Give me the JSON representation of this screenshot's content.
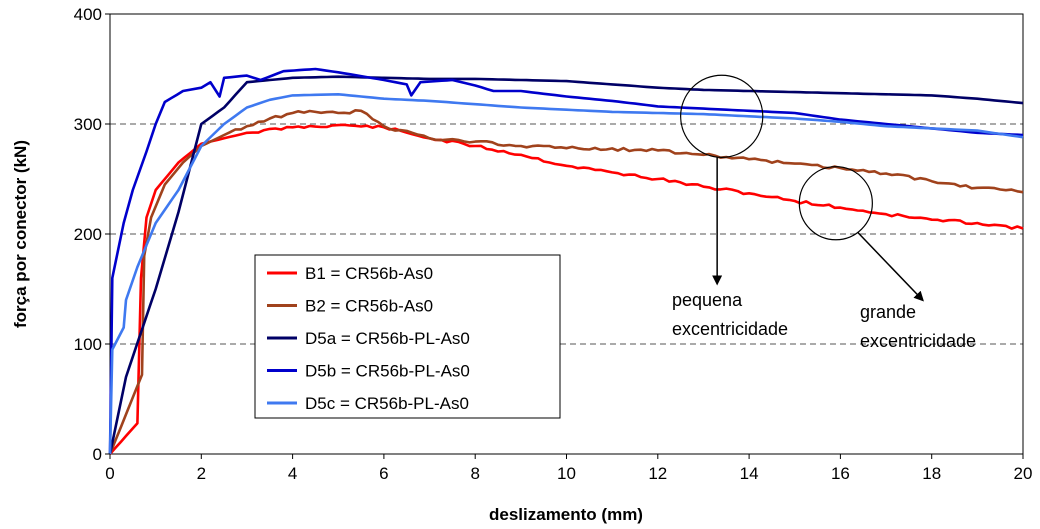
{
  "chart_data": {
    "type": "line",
    "xlabel": "deslizamento (mm)",
    "ylabel": "força por conector (kN)",
    "xlim": [
      0,
      20
    ],
    "ylim": [
      0,
      400
    ],
    "x_ticks": [
      0,
      2,
      4,
      6,
      8,
      10,
      12,
      14,
      16,
      18,
      20
    ],
    "y_ticks": [
      0,
      100,
      200,
      300,
      400
    ],
    "grid": "horizontal dashed",
    "legend_position": "bottom-left",
    "series": [
      {
        "name": "B1 = CR56b-As0",
        "color": "#ff0000",
        "points": [
          [
            0,
            0
          ],
          [
            0.6,
            28
          ],
          [
            0.68,
            160
          ],
          [
            0.8,
            215
          ],
          [
            1,
            240
          ],
          [
            1.5,
            265
          ],
          [
            2,
            282
          ],
          [
            3,
            292
          ],
          [
            4,
            297
          ],
          [
            5,
            299
          ],
          [
            6,
            297
          ],
          [
            7,
            287
          ],
          [
            8,
            280
          ],
          [
            9,
            272
          ],
          [
            10,
            262
          ],
          [
            11,
            256
          ],
          [
            12,
            250
          ],
          [
            13,
            243
          ],
          [
            14,
            237
          ],
          [
            15,
            230
          ],
          [
            16,
            224
          ],
          [
            17,
            218
          ],
          [
            18,
            213
          ],
          [
            19,
            210
          ],
          [
            20,
            205
          ]
        ]
      },
      {
        "name": "B2 = CR56b-As0",
        "color": "#a0421c",
        "points": [
          [
            0,
            0
          ],
          [
            0.7,
            72
          ],
          [
            0.75,
            180
          ],
          [
            0.9,
            215
          ],
          [
            1.2,
            245
          ],
          [
            1.6,
            265
          ],
          [
            2,
            280
          ],
          [
            2.5,
            290
          ],
          [
            3,
            298
          ],
          [
            3.5,
            305
          ],
          [
            4,
            310
          ],
          [
            4.5,
            311
          ],
          [
            5,
            310
          ],
          [
            5.5,
            312
          ],
          [
            6,
            298
          ],
          [
            7,
            287
          ],
          [
            8,
            284
          ],
          [
            9,
            280
          ],
          [
            10,
            278
          ],
          [
            12,
            276
          ],
          [
            13,
            272
          ],
          [
            14,
            268
          ],
          [
            15,
            264
          ],
          [
            16,
            260
          ],
          [
            17,
            255
          ],
          [
            18,
            248
          ],
          [
            19,
            242
          ],
          [
            20,
            238
          ]
        ]
      },
      {
        "name": "D5a = CR56b-PL-As0",
        "color": "#000066",
        "points": [
          [
            0,
            0
          ],
          [
            0.35,
            70
          ],
          [
            1,
            150
          ],
          [
            1.5,
            220
          ],
          [
            2,
            300
          ],
          [
            2.5,
            315
          ],
          [
            3,
            338
          ],
          [
            4,
            342
          ],
          [
            5,
            343
          ],
          [
            6,
            342
          ],
          [
            7,
            341
          ],
          [
            8,
            341
          ],
          [
            9,
            340
          ],
          [
            10,
            339
          ],
          [
            11,
            336
          ],
          [
            12,
            333
          ],
          [
            13,
            331
          ],
          [
            14,
            330
          ],
          [
            15,
            329
          ],
          [
            16,
            328
          ],
          [
            17,
            327
          ],
          [
            18,
            326
          ],
          [
            19,
            323
          ],
          [
            20,
            319
          ]
        ]
      },
      {
        "name": "D5b = CR56b-PL-As0",
        "color": "#0000cc",
        "points": [
          [
            0,
            0
          ],
          [
            0.05,
            160
          ],
          [
            0.3,
            210
          ],
          [
            0.5,
            240
          ],
          [
            0.8,
            275
          ],
          [
            1,
            300
          ],
          [
            1.2,
            320
          ],
          [
            1.6,
            330
          ],
          [
            2,
            333
          ],
          [
            2.2,
            338
          ],
          [
            2.4,
            325
          ],
          [
            2.5,
            342
          ],
          [
            3,
            344
          ],
          [
            3.3,
            340
          ],
          [
            3.8,
            348
          ],
          [
            4.5,
            350
          ],
          [
            5,
            347
          ],
          [
            6,
            340
          ],
          [
            6.5,
            336
          ],
          [
            6.6,
            326
          ],
          [
            6.8,
            338
          ],
          [
            7.5,
            340
          ],
          [
            8,
            335
          ],
          [
            8.4,
            330
          ],
          [
            9,
            330
          ],
          [
            10,
            325
          ],
          [
            11,
            321
          ],
          [
            12,
            316
          ],
          [
            13,
            314
          ],
          [
            14,
            312
          ],
          [
            15,
            310
          ],
          [
            16,
            304
          ],
          [
            17,
            300
          ],
          [
            18,
            296
          ],
          [
            19,
            292
          ],
          [
            20,
            290
          ]
        ]
      },
      {
        "name": "D5c = CR56b-PL-As0",
        "color": "#3f79f0",
        "points": [
          [
            0,
            0
          ],
          [
            0.05,
            95
          ],
          [
            0.3,
            115
          ],
          [
            0.35,
            140
          ],
          [
            0.6,
            170
          ],
          [
            1,
            210
          ],
          [
            1.5,
            240
          ],
          [
            2,
            280
          ],
          [
            2.5,
            300
          ],
          [
            3,
            315
          ],
          [
            3.5,
            322
          ],
          [
            4,
            326
          ],
          [
            5,
            327
          ],
          [
            6,
            323
          ],
          [
            7,
            321
          ],
          [
            8,
            318
          ],
          [
            9,
            315
          ],
          [
            10,
            313
          ],
          [
            11,
            311
          ],
          [
            12,
            310
          ],
          [
            13,
            309
          ],
          [
            14,
            307
          ],
          [
            15,
            305
          ],
          [
            16,
            302
          ],
          [
            17,
            298
          ],
          [
            18,
            296
          ],
          [
            19,
            294
          ],
          [
            20,
            288
          ]
        ]
      }
    ],
    "annotations": [
      {
        "text_lines": [
          "pequena",
          "excentricidade"
        ],
        "circle_center": [
          13.4,
          307
        ],
        "circle_radius_data_x": 0.9,
        "arrow_to": [
          13.3,
          155
        ]
      },
      {
        "text_lines": [
          "grande",
          "excentricidade"
        ],
        "circle_center": [
          15.9,
          228
        ],
        "circle_radius_data_x": 0.8,
        "arrow_to": [
          17.8,
          140
        ]
      }
    ]
  }
}
